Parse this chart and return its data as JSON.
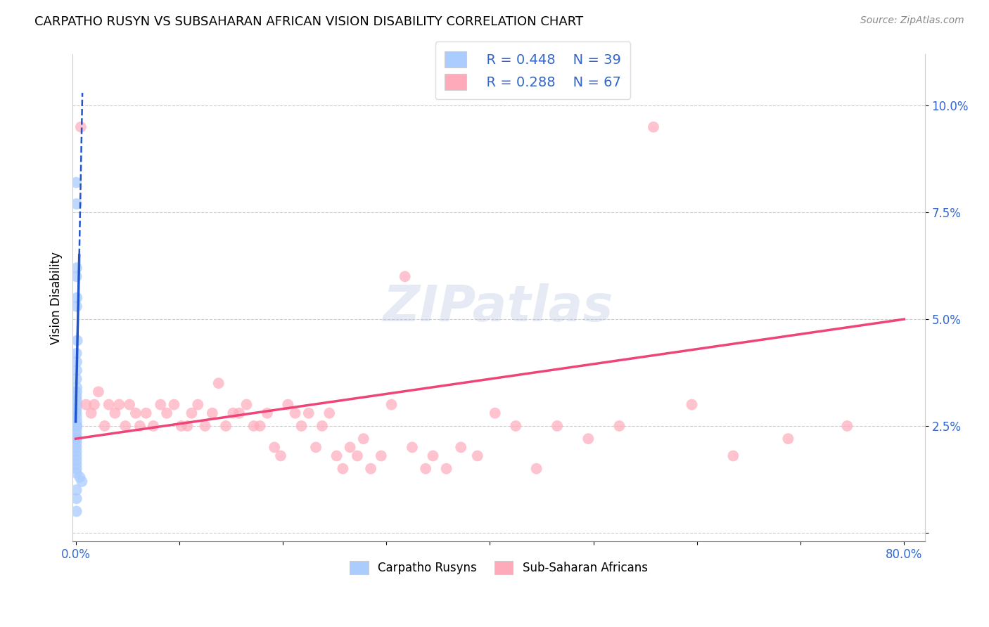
{
  "title": "CARPATHO RUSYN VS SUBSAHARAN AFRICAN VISION DISABILITY CORRELATION CHART",
  "source": "Source: ZipAtlas.com",
  "ylabel": "Vision Disability",
  "xlim": [
    -0.003,
    0.82
  ],
  "ylim": [
    -0.002,
    0.112
  ],
  "xticks": [
    0.0,
    0.1,
    0.2,
    0.3,
    0.4,
    0.5,
    0.6,
    0.7,
    0.8
  ],
  "yticks": [
    0.0,
    0.025,
    0.05,
    0.075,
    0.1
  ],
  "grid_color": "#cccccc",
  "blue_color": "#aaccff",
  "pink_color": "#ffaabb",
  "blue_line_color": "#2255cc",
  "pink_line_color": "#ee4477",
  "legend_R_blue": "R = 0.448",
  "legend_N_blue": "N = 39",
  "legend_R_pink": "R = 0.288",
  "legend_N_pink": "N = 67",
  "watermark": "ZIPatlas",
  "blue_scatter_x": [
    0.0005,
    0.0008,
    0.001,
    0.0008,
    0.0012,
    0.001,
    0.0015,
    0.0008,
    0.001,
    0.001,
    0.0008,
    0.001,
    0.001,
    0.0008,
    0.001,
    0.0012,
    0.0008,
    0.0008,
    0.0008,
    0.001,
    0.001,
    0.0012,
    0.0008,
    0.0008,
    0.0008,
    0.001,
    0.0008,
    0.0008,
    0.0008,
    0.0008,
    0.0008,
    0.0008,
    0.0008,
    0.0008,
    0.004,
    0.006,
    0.0008,
    0.0008,
    0.0008
  ],
  "blue_scatter_y": [
    0.082,
    0.077,
    0.062,
    0.06,
    0.055,
    0.053,
    0.045,
    0.042,
    0.04,
    0.038,
    0.036,
    0.034,
    0.033,
    0.032,
    0.031,
    0.03,
    0.029,
    0.028,
    0.027,
    0.026,
    0.025,
    0.025,
    0.024,
    0.023,
    0.022,
    0.022,
    0.021,
    0.02,
    0.019,
    0.018,
    0.017,
    0.016,
    0.015,
    0.014,
    0.013,
    0.012,
    0.01,
    0.008,
    0.005
  ],
  "pink_scatter_x": [
    0.005,
    0.01,
    0.015,
    0.018,
    0.022,
    0.028,
    0.032,
    0.038,
    0.042,
    0.048,
    0.052,
    0.058,
    0.062,
    0.068,
    0.075,
    0.082,
    0.088,
    0.095,
    0.102,
    0.108,
    0.112,
    0.118,
    0.125,
    0.132,
    0.138,
    0.145,
    0.152,
    0.158,
    0.165,
    0.172,
    0.178,
    0.185,
    0.192,
    0.198,
    0.205,
    0.212,
    0.218,
    0.225,
    0.232,
    0.238,
    0.245,
    0.252,
    0.258,
    0.265,
    0.272,
    0.278,
    0.285,
    0.295,
    0.305,
    0.318,
    0.325,
    0.338,
    0.345,
    0.358,
    0.372,
    0.388,
    0.405,
    0.425,
    0.445,
    0.465,
    0.495,
    0.525,
    0.558,
    0.595,
    0.635,
    0.688,
    0.745
  ],
  "pink_scatter_y": [
    0.095,
    0.03,
    0.028,
    0.03,
    0.033,
    0.025,
    0.03,
    0.028,
    0.03,
    0.025,
    0.03,
    0.028,
    0.025,
    0.028,
    0.025,
    0.03,
    0.028,
    0.03,
    0.025,
    0.025,
    0.028,
    0.03,
    0.025,
    0.028,
    0.035,
    0.025,
    0.028,
    0.028,
    0.03,
    0.025,
    0.025,
    0.028,
    0.02,
    0.018,
    0.03,
    0.028,
    0.025,
    0.028,
    0.02,
    0.025,
    0.028,
    0.018,
    0.015,
    0.02,
    0.018,
    0.022,
    0.015,
    0.018,
    0.03,
    0.06,
    0.02,
    0.015,
    0.018,
    0.015,
    0.02,
    0.018,
    0.028,
    0.025,
    0.015,
    0.025,
    0.022,
    0.025,
    0.095,
    0.03,
    0.018,
    0.022,
    0.025
  ],
  "pink_line_x0": 0.0,
  "pink_line_y0": 0.022,
  "pink_line_x1": 0.8,
  "pink_line_y1": 0.05,
  "blue_line_solid_x0": 0.0,
  "blue_line_solid_y0": 0.026,
  "blue_line_solid_x1": 0.0035,
  "blue_line_solid_y1": 0.065,
  "blue_line_dash_x0": 0.0035,
  "blue_line_dash_y0": 0.065,
  "blue_line_dash_x1": 0.0065,
  "blue_line_dash_y1": 0.103
}
